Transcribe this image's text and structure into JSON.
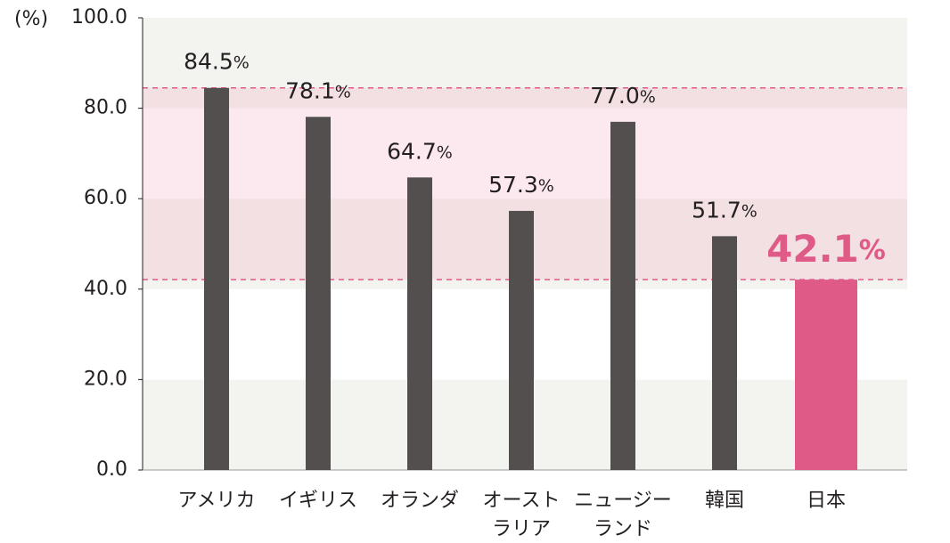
{
  "chart_data": {
    "type": "bar",
    "y_axis_label": "(%)",
    "categories": [
      [
        "アメリカ"
      ],
      [
        "イギリス"
      ],
      [
        "オランダ"
      ],
      [
        "オースト",
        "ラリア"
      ],
      [
        "ニュージー",
        "ランド"
      ],
      [
        "韓国"
      ],
      [
        "日本"
      ]
    ],
    "values": [
      84.5,
      78.1,
      64.7,
      57.3,
      77.0,
      51.7,
      42.1
    ],
    "value_labels": [
      "84.5%",
      "78.1%",
      "64.7%",
      "57.3%",
      "77.0%",
      "51.7%",
      "42.1%"
    ],
    "color": "#524f4e",
    "colors": [
      "#524f4e",
      "#524f4e",
      "#524f4e",
      "#524f4e",
      "#524f4e",
      "#524f4e",
      "#e05a87"
    ],
    "ylim": [
      0,
      100
    ],
    "yticks": [
      {
        "value": 0,
        "label": "0.0"
      },
      {
        "value": 20,
        "label": "20.0"
      },
      {
        "value": 40,
        "label": "40.0"
      },
      {
        "value": 60,
        "label": "60.0"
      },
      {
        "value": 80,
        "label": "80.0"
      },
      {
        "value": 100,
        "label": "100.0"
      }
    ],
    "grid": false
  }
}
